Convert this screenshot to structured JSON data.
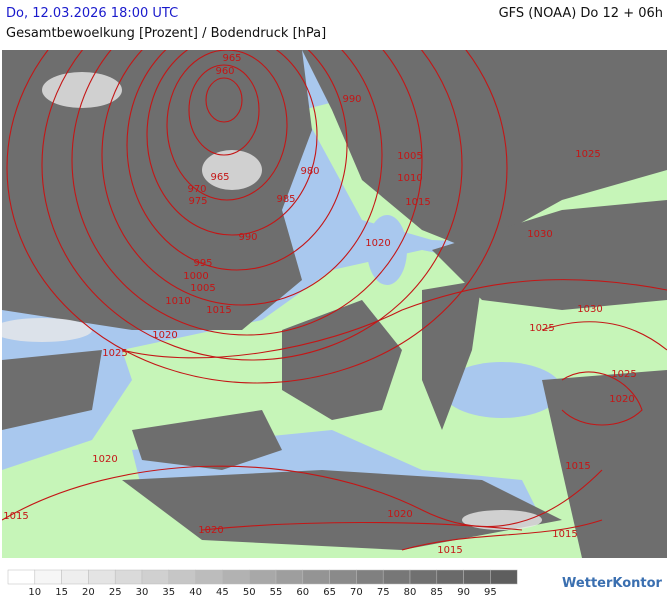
{
  "header": {
    "datetime": "Do, 12.03.2026 18:00 UTC",
    "model": "GFS (NOAA) Do 12 + 06h",
    "title": "Gesamtbewoelkung [Prozent] / Bodendruck [hPa]"
  },
  "isobar_labels": [
    "965",
    "960",
    "990",
    "1005",
    "1025",
    "980",
    "1010",
    "965",
    "970",
    "975",
    "985",
    "1015",
    "1020",
    "1030",
    "990",
    "995",
    "1000",
    "1005",
    "1010",
    "1015",
    "1030",
    "1020",
    "1025",
    "1025",
    "1025",
    "1020",
    "1020",
    "1015",
    "1015",
    "1020",
    "1020",
    "1015",
    "1015"
  ],
  "legend": {
    "labels": [
      "10",
      "15",
      "20",
      "25",
      "30",
      "35",
      "40",
      "45",
      "50",
      "55",
      "60",
      "65",
      "70",
      "75",
      "80",
      "85",
      "90",
      "95"
    ],
    "colors": [
      "#ffffff",
      "#f6f6f6",
      "#eeeeee",
      "#e4e4e4",
      "#dadada",
      "#d0d0d0",
      "#c6c6c6",
      "#bcbcbc",
      "#b2b2b2",
      "#a8a8a8",
      "#9e9e9e",
      "#949494",
      "#8a8a8a",
      "#808080",
      "#777777",
      "#707070",
      "#6a6a6a",
      "#656565",
      "#5e5e5e"
    ]
  },
  "logo": "WetterKontor"
}
